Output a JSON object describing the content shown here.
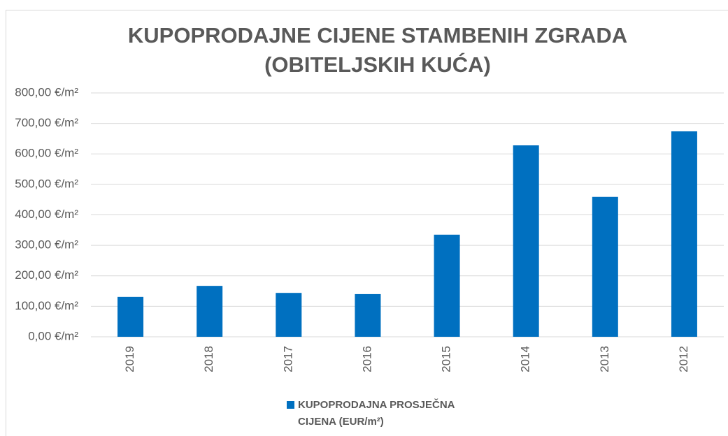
{
  "chart_data": {
    "type": "bar",
    "title": "KUPOPRODAJNE CIJENE STAMBENIH ZGRADA (OBITELJSKIH KUĆA)",
    "categories": [
      "2019",
      "2018",
      "2017",
      "2016",
      "2015",
      "2014",
      "2013",
      "2012"
    ],
    "series": [
      {
        "name": "KUPOPRODAJNA PROSJEČNA CIJENA (EUR/m²)",
        "color": "#0070c0",
        "values": [
          131,
          167,
          144,
          140,
          335,
          628,
          459,
          674
        ]
      }
    ],
    "ylim": [
      0,
      800
    ],
    "yticks": [
      {
        "value": 0,
        "label": "0,00 €/m²"
      },
      {
        "value": 100,
        "label": "100,00 €/m²"
      },
      {
        "value": 200,
        "label": "200,00 €/m²"
      },
      {
        "value": 300,
        "label": "300,00 €/m²"
      },
      {
        "value": 400,
        "label": "400,00 €/m²"
      },
      {
        "value": 500,
        "label": "500,00 €/m²"
      },
      {
        "value": 600,
        "label": "600,00 €/m²"
      },
      {
        "value": 700,
        "label": "700,00 €/m²"
      },
      {
        "value": 800,
        "label": "800,00 €/m²"
      }
    ],
    "grid": true,
    "legend": "bottom"
  }
}
